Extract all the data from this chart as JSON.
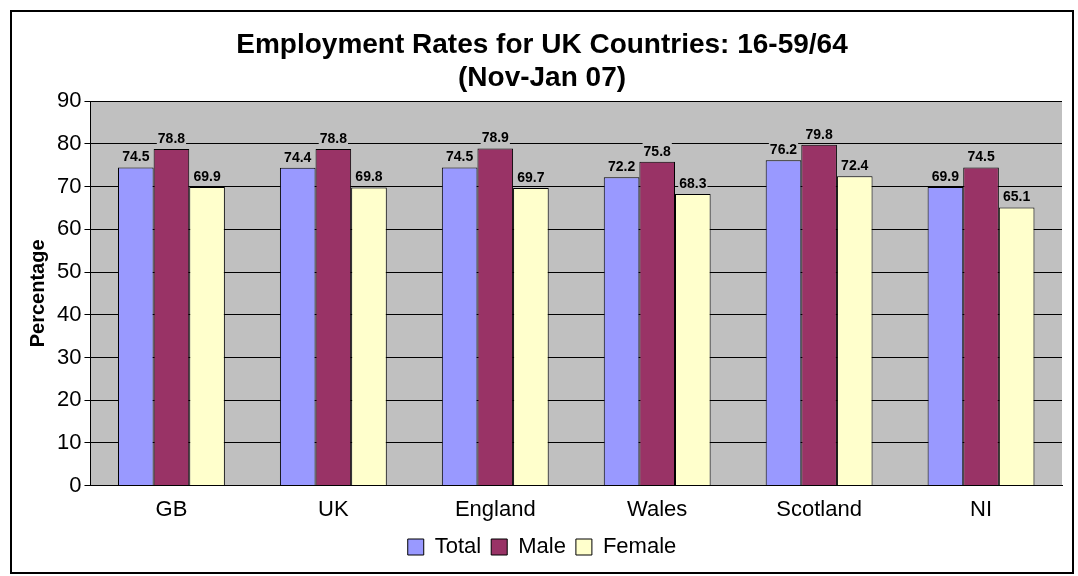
{
  "chart_data": {
    "type": "bar",
    "title": "Employment Rates for UK Countries: 16-59/64\n(Nov-Jan 07)",
    "ylabel": "Percentage",
    "categories": [
      "GB",
      "UK",
      "England",
      "Wales",
      "Scotland",
      "NI"
    ],
    "series": [
      {
        "name": "Total",
        "color": "#9999ff",
        "values": [
          74.5,
          74.4,
          74.5,
          72.2,
          76.2,
          69.9
        ]
      },
      {
        "name": "Male",
        "color": "#993366",
        "values": [
          78.8,
          78.8,
          78.9,
          75.8,
          79.8,
          74.5
        ]
      },
      {
        "name": "Female",
        "color": "#ffffcc",
        "values": [
          69.9,
          69.8,
          69.7,
          68.3,
          72.4,
          65.1
        ]
      }
    ],
    "ylim": [
      0,
      90
    ],
    "yticks": [
      0,
      10,
      20,
      30,
      40,
      50,
      60,
      70,
      80,
      90
    ],
    "grid": "y",
    "legend": "bottom",
    "data_labels": true
  }
}
